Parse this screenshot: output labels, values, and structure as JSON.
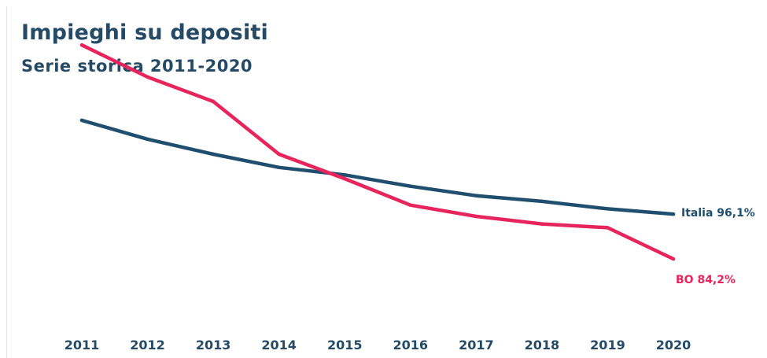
{
  "chart_data": {
    "type": "line",
    "title": "Impieghi su depositi",
    "subtitle": "Serie storica 2011-2020",
    "x": [
      "2011",
      "2012",
      "2013",
      "2014",
      "2015",
      "2016",
      "2017",
      "2018",
      "2019",
      "2020"
    ],
    "series": [
      {
        "name": "Italia",
        "color": "#1f4e6e",
        "values": [
          121,
          116,
          112,
          108.5,
          106.5,
          103.5,
          101,
          99.5,
          97.5,
          96.1
        ],
        "end_label": "Italia 96,1%"
      },
      {
        "name": "BO",
        "color": "#e8245c",
        "values": [
          141,
          132.5,
          126,
          112,
          105.5,
          98.5,
          95.5,
          93.5,
          92.5,
          84.2
        ],
        "end_label": "BO 84,2%"
      }
    ],
    "ylim": [
      60,
      145
    ],
    "grid": false,
    "legend": "none"
  }
}
